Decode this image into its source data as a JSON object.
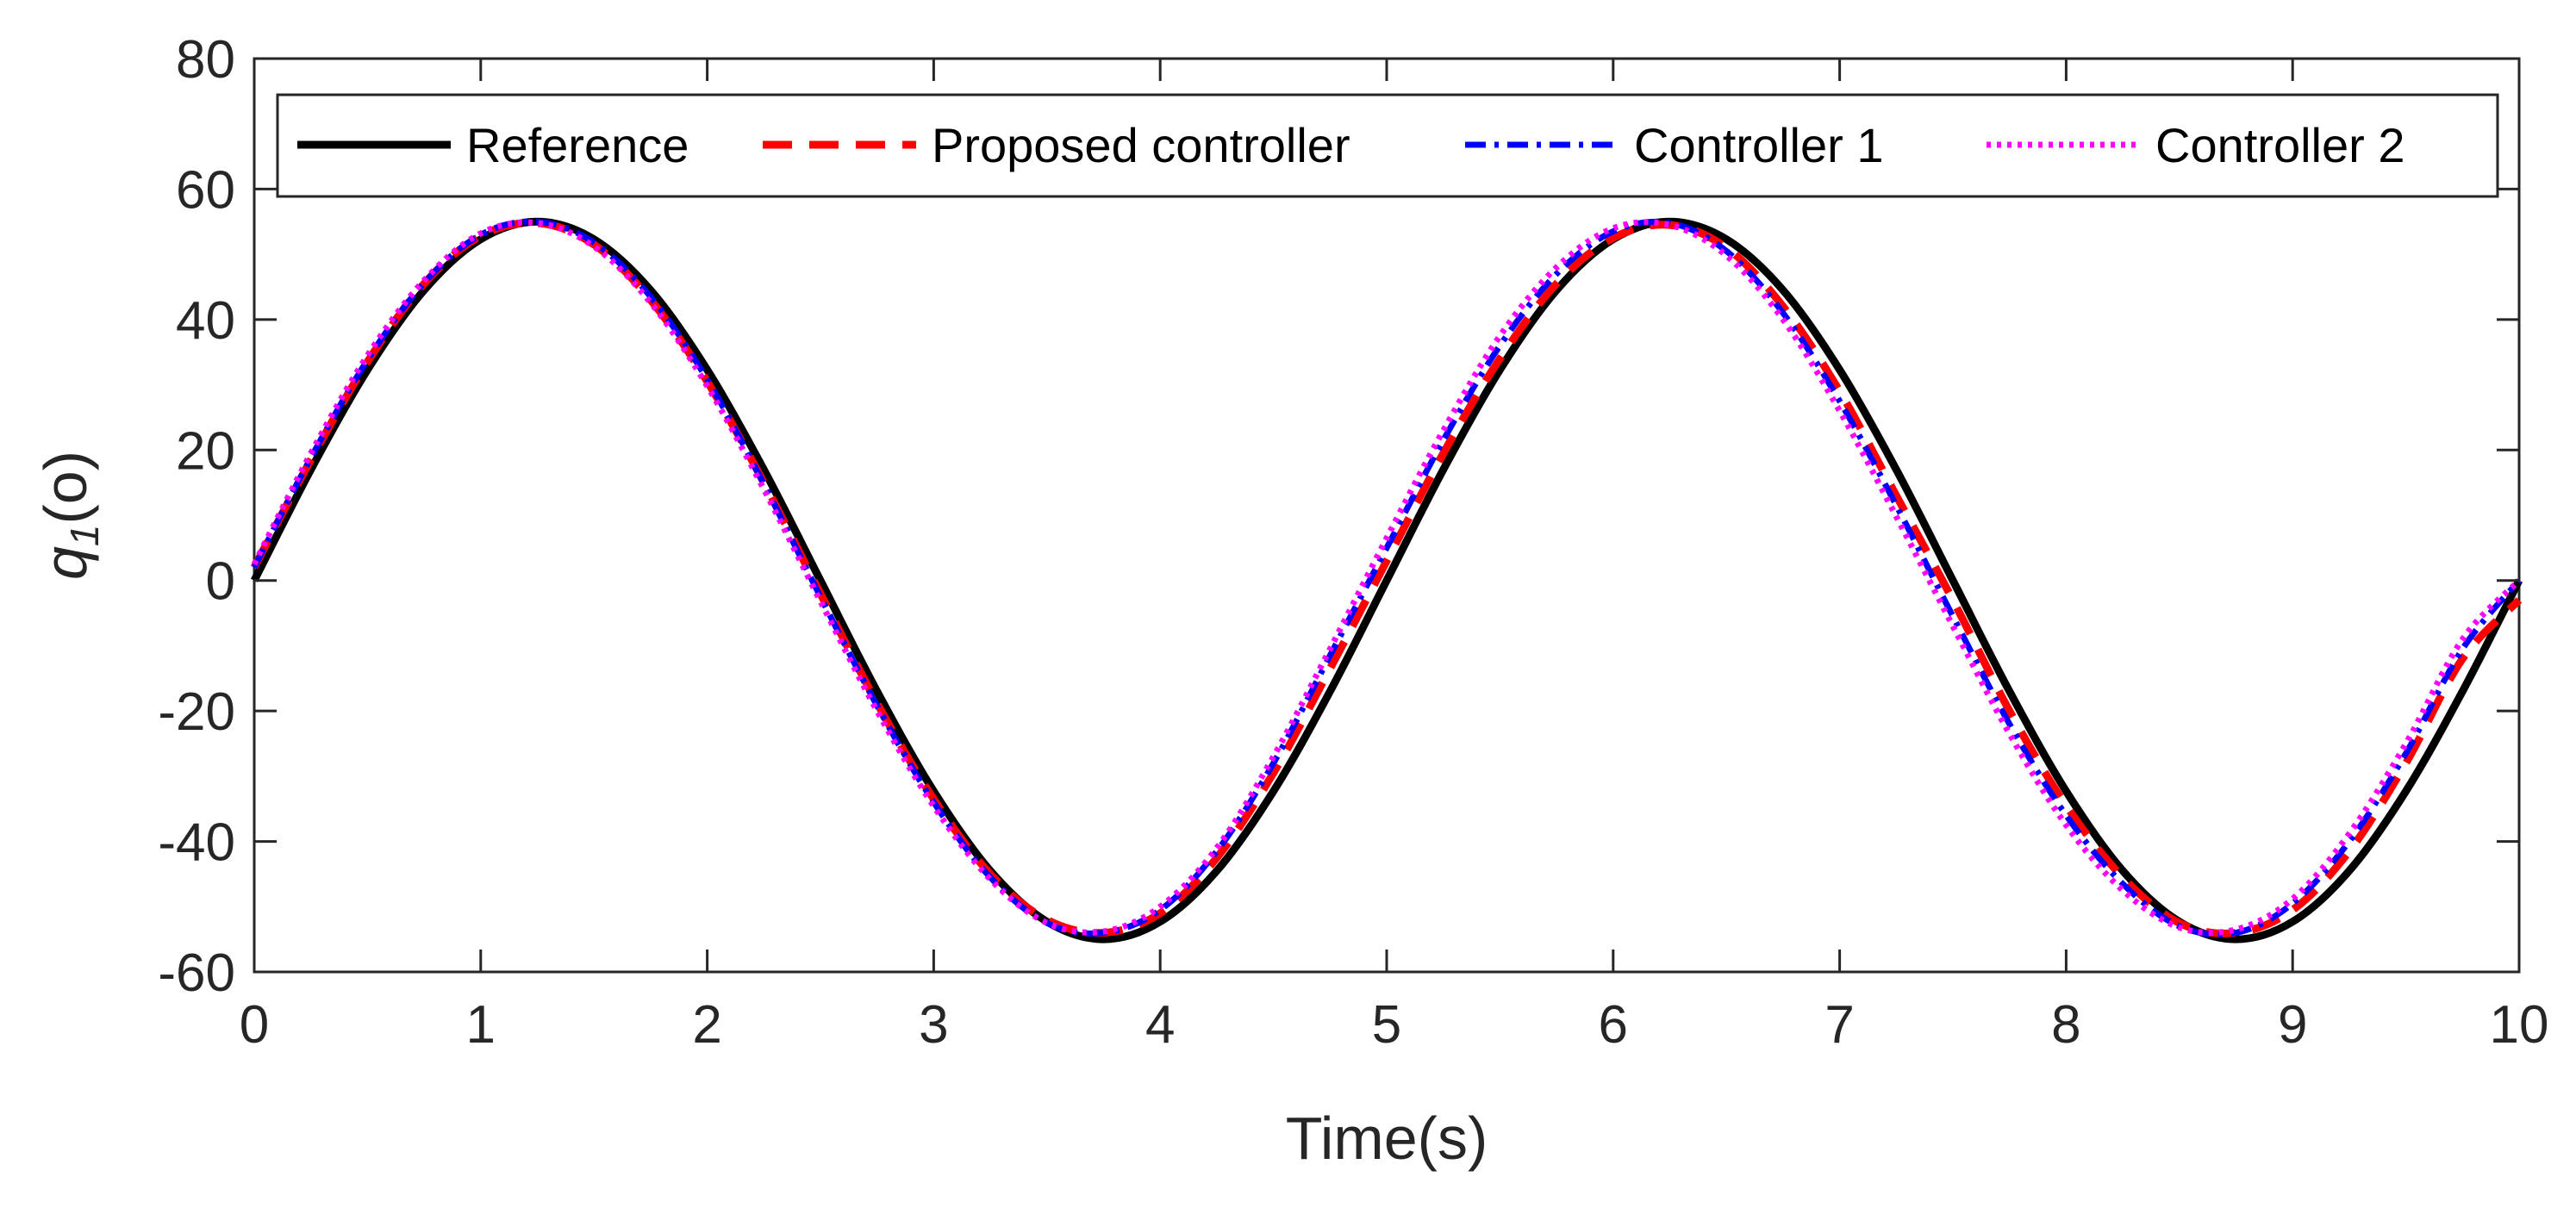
{
  "chart_data": {
    "type": "line",
    "title": "",
    "xlabel": "Time(s)",
    "ylabel": {
      "symbol": "q",
      "subscript": "1",
      "unit": "(o)"
    },
    "xlim": [
      0,
      10
    ],
    "ylim": [
      -60,
      80
    ],
    "xticks": [
      0,
      1,
      2,
      3,
      4,
      5,
      6,
      7,
      8,
      9,
      10
    ],
    "yticks": [
      -60,
      -40,
      -20,
      0,
      20,
      40,
      60,
      80
    ],
    "grid": false,
    "legend_position": "top",
    "x": [
      0.0,
      0.25,
      0.5,
      0.75,
      1.0,
      1.25,
      1.5,
      1.75,
      2.0,
      2.25,
      2.5,
      2.75,
      3.0,
      3.25,
      3.5,
      3.75,
      4.0,
      4.25,
      4.5,
      4.75,
      5.0,
      5.25,
      5.5,
      5.75,
      6.0,
      6.25,
      6.5,
      6.75,
      7.0,
      7.25,
      7.5,
      7.75,
      8.0,
      8.25,
      8.5,
      8.75,
      9.0,
      9.25,
      9.5,
      9.75,
      10.0
    ],
    "series": [
      {
        "name": "Reference",
        "color": "#000000",
        "dash": "solid",
        "values": [
          0.0,
          17.0,
          32.3,
          44.5,
          52.3,
          55.0,
          52.3,
          44.5,
          32.3,
          17.0,
          0.0,
          -17.0,
          -32.3,
          -44.5,
          -52.3,
          -55.0,
          -52.3,
          -44.5,
          -32.3,
          -17.0,
          0.0,
          17.0,
          32.3,
          44.5,
          52.3,
          55.0,
          52.3,
          44.5,
          32.3,
          17.0,
          0.0,
          -17.0,
          -32.3,
          -44.5,
          -52.3,
          -55.0,
          -52.3,
          -44.5,
          -32.3,
          -17.0,
          0.0
        ]
      },
      {
        "name": "Proposed controller",
        "color": "#ff0000",
        "dash": "dashed",
        "values": [
          2.0,
          18.5,
          33.5,
          45.5,
          52.8,
          54.8,
          51.5,
          43.0,
          30.5,
          15.0,
          -2.0,
          -18.8,
          -33.5,
          -45.0,
          -52.0,
          -54.0,
          -51.0,
          -42.5,
          -29.5,
          -13.5,
          3.0,
          19.5,
          34.0,
          45.5,
          52.5,
          54.5,
          51.0,
          42.0,
          29.0,
          13.0,
          -3.0,
          -20.0,
          -34.5,
          -45.5,
          -52.5,
          -54.0,
          -50.5,
          -41.5,
          -28.0,
          -12.0,
          -3.0
        ]
      },
      {
        "name": "Controller 1",
        "color": "#0000ff",
        "dash": "dashdot",
        "values": [
          2.0,
          18.8,
          33.8,
          45.6,
          53.0,
          55.0,
          51.8,
          43.5,
          30.8,
          14.8,
          -2.5,
          -19.2,
          -34.0,
          -45.5,
          -52.5,
          -54.0,
          -50.5,
          -41.5,
          -28.0,
          -11.5,
          5.0,
          21.5,
          36.0,
          47.0,
          53.5,
          54.8,
          50.5,
          41.0,
          27.5,
          11.5,
          -5.5,
          -22.0,
          -36.0,
          -46.5,
          -53.0,
          -54.0,
          -49.5,
          -40.0,
          -26.5,
          -10.5,
          0.0
        ]
      },
      {
        "name": "Controller 2",
        "color": "#ff00ff",
        "dash": "dotted",
        "values": [
          2.5,
          19.5,
          34.5,
          46.0,
          53.2,
          54.8,
          51.2,
          42.6,
          29.8,
          14.0,
          -3.2,
          -20.0,
          -34.6,
          -45.8,
          -52.5,
          -53.8,
          -50.0,
          -41.0,
          -27.0,
          -10.5,
          6.5,
          23.0,
          37.5,
          48.0,
          54.0,
          54.5,
          49.8,
          40.0,
          26.0,
          9.8,
          -7.0,
          -23.5,
          -37.5,
          -47.5,
          -53.2,
          -53.5,
          -48.8,
          -38.8,
          -25.0,
          -9.0,
          0.0
        ]
      }
    ]
  }
}
